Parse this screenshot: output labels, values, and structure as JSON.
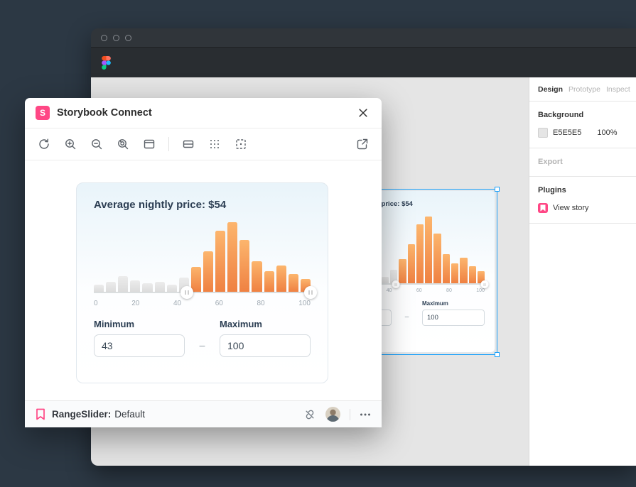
{
  "figma": {
    "panel": {
      "tabs": [
        {
          "label": "Design",
          "active": true
        },
        {
          "label": "Prototype",
          "active": false
        },
        {
          "label": "Inspect",
          "active": false
        }
      ],
      "background_label": "Background",
      "background_hex": "E5E5E5",
      "background_opacity": "100%",
      "export_label": "Export",
      "plugins_label": "Plugins",
      "plugin_item": "View story"
    }
  },
  "plugin_window": {
    "title": "Storybook Connect",
    "logo_letter": "S",
    "footer": {
      "story_name": "RangeSlider:",
      "story_variant": "Default"
    }
  },
  "component": {
    "title": "Average nightly price: $54",
    "minimum_label": "Minimum",
    "maximum_label": "Maximum",
    "minimum_value": "43",
    "maximum_value": "100",
    "dash": "–"
  },
  "chart_data": {
    "type": "bar",
    "title": "Average nightly price: $54",
    "values": [
      10,
      14,
      22,
      16,
      12,
      14,
      10,
      20,
      36,
      58,
      88,
      100,
      74,
      44,
      30,
      38,
      26,
      18
    ],
    "gray_count": 8,
    "xticks": [
      "0",
      "20",
      "40",
      "60",
      "80",
      "100"
    ],
    "xlim": [
      0,
      100
    ],
    "slider": {
      "min": 43,
      "max": 100
    },
    "bar_active_top": "#fcb56d",
    "bar_active_bottom": "#ef8142",
    "bar_inactive_top": "#ececec",
    "bar_inactive_bottom": "#dcdcdc"
  },
  "colors": {
    "storybook_pink": "#FF4785",
    "figma_selection_blue": "#18A0FB",
    "canvas_gray": "#E5E5E5"
  }
}
